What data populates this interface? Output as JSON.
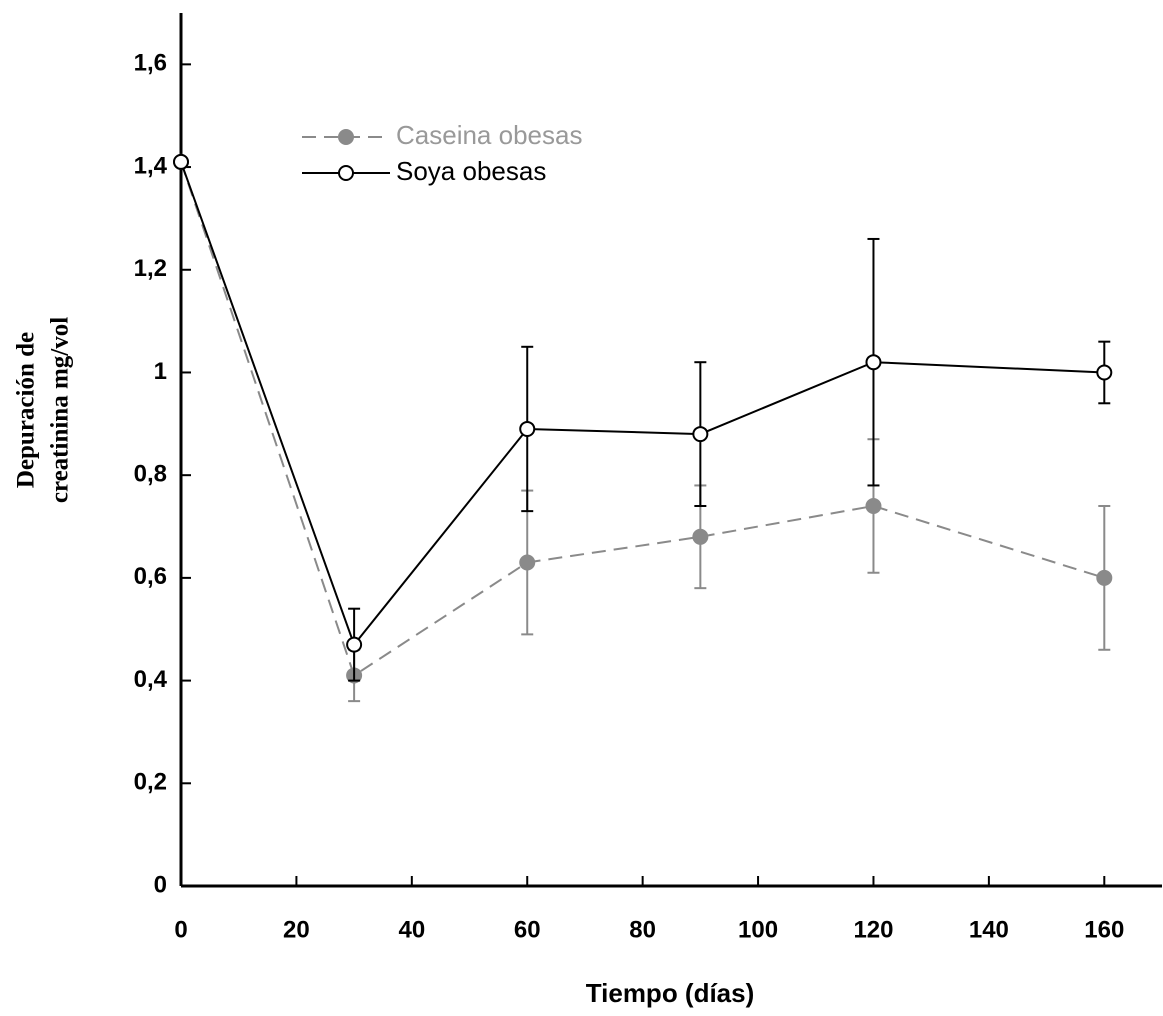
{
  "chart_data": {
    "type": "line",
    "xlabel": "Tiempo (días)",
    "ylabel": [
      "Depuración de",
      "creatinina mg/vol"
    ],
    "x": [
      0,
      30,
      60,
      90,
      120,
      160
    ],
    "series": [
      {
        "name": "Caseina obesas",
        "color": "#8a8a8a",
        "marker": "filled",
        "dashed": true,
        "values": [
          1.41,
          0.41,
          0.63,
          0.68,
          0.74,
          0.6
        ],
        "errors": [
          null,
          0.05,
          0.14,
          0.1,
          0.13,
          0.14
        ]
      },
      {
        "name": "Soya obesas",
        "color": "#000000",
        "marker": "open",
        "dashed": false,
        "values": [
          1.41,
          0.47,
          0.89,
          0.88,
          1.02,
          1.0
        ],
        "errors": [
          null,
          0.07,
          0.16,
          0.14,
          0.24,
          0.06
        ]
      }
    ],
    "xlim": [
      0,
      170
    ],
    "xticks": [
      0,
      20,
      40,
      60,
      80,
      100,
      120,
      140,
      160
    ],
    "ylim": [
      0,
      1.7
    ],
    "yticks": [
      0,
      {
        "value": 0.2,
        "label": "0,2"
      },
      {
        "value": 0.4,
        "label": "0,4"
      },
      {
        "value": 0.6,
        "label": "0,6"
      },
      {
        "value": 0.8,
        "label": "0,8"
      },
      1,
      {
        "value": 1.2,
        "label": "1,2"
      },
      {
        "value": 1.4,
        "label": "1,4"
      },
      {
        "value": 1.6,
        "label": "1,6"
      }
    ],
    "grid": false
  }
}
